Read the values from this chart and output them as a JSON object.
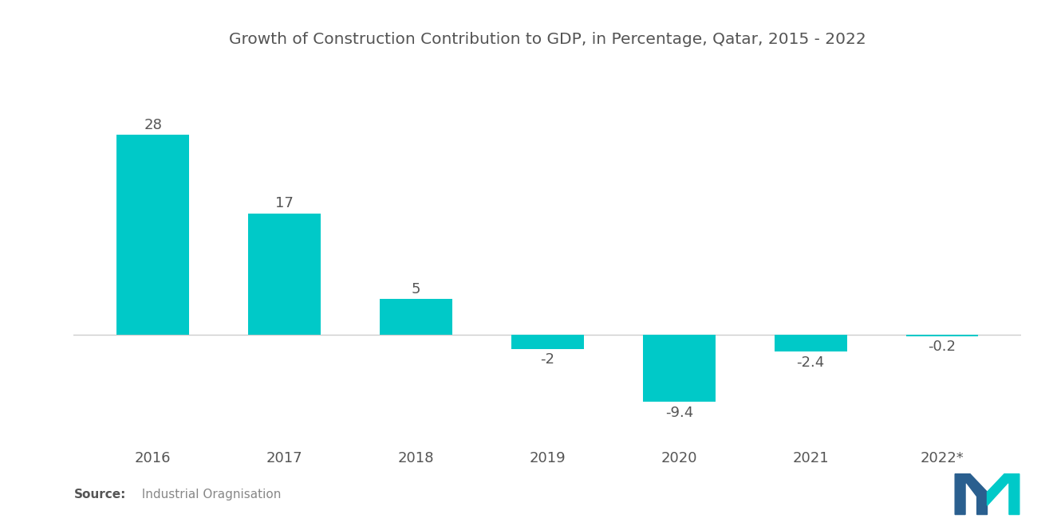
{
  "title": "Growth of Construction Contribution to GDP, in Percentage, Qatar, 2015 - 2022",
  "categories": [
    "2016",
    "2017",
    "2018",
    "2019",
    "2020",
    "2021",
    "2022*"
  ],
  "values": [
    28,
    17,
    5,
    -2,
    -9.4,
    -2.4,
    -0.2
  ],
  "bar_color": "#00C9C8",
  "background_color": "#ffffff",
  "title_fontsize": 14.5,
  "label_fontsize": 13,
  "tick_fontsize": 13,
  "source_bold": "Source:",
  "source_rest": "  Industrial Oragnisation",
  "ylim": [
    -14,
    38
  ],
  "bar_width": 0.55
}
